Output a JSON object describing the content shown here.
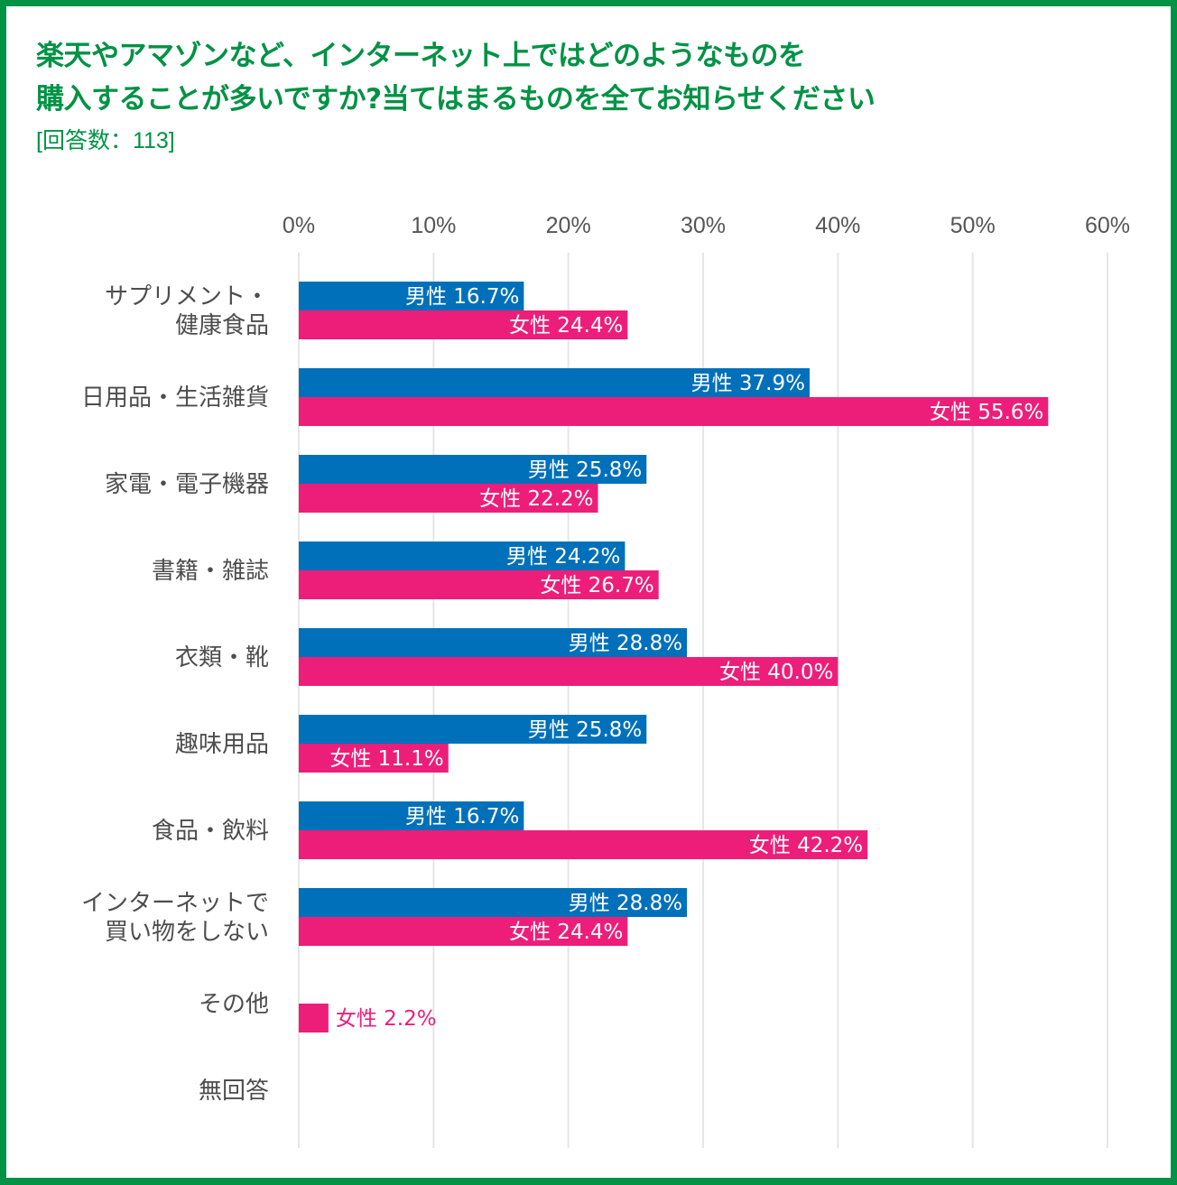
{
  "title_lines": [
    "楽天やアマゾンなど、インターネット上ではどのようなものを",
    "購入することが多いですか?当てはまるものを全てお知らせください"
  ],
  "subtitle": "[回答数：113]",
  "colors": {
    "frame": "#009245",
    "title": "#009245",
    "male": "#0070BA",
    "female": "#ED1E79",
    "grid": "#E6E6E6",
    "text": "#4D4D4D"
  },
  "chart_data": {
    "type": "bar",
    "orientation": "horizontal",
    "title": "楽天やアマゾンなど、インターネット上ではどのようなものを購入することが多いですか?当てはまるものを全てお知らせください",
    "subtitle": "[回答数：113]",
    "xlabel": "",
    "ylabel": "",
    "xlim": [
      0,
      60
    ],
    "x_ticks": [
      0,
      10,
      20,
      30,
      40,
      50,
      60
    ],
    "x_tick_labels": [
      "0%",
      "10%",
      "20%",
      "30%",
      "40%",
      "50%",
      "60%"
    ],
    "x_axis_position": "top",
    "grid": true,
    "legend": "none (series names shown inside data labels)",
    "categories": [
      [
        "サプリメント・",
        "健康食品"
      ],
      [
        "日用品・生活雑貨"
      ],
      [
        "家電・電子機器"
      ],
      [
        "書籍・雑誌"
      ],
      [
        "衣類・靴"
      ],
      [
        "趣味用品"
      ],
      [
        "食品・飲料"
      ],
      [
        "インターネットで",
        "買い物をしない"
      ],
      [
        "その他"
      ],
      [
        "無回答"
      ]
    ],
    "series": [
      {
        "name": "男性",
        "label_prefix": "男性",
        "values": [
          16.7,
          37.9,
          25.8,
          24.2,
          28.8,
          25.8,
          16.7,
          28.8,
          0,
          0
        ],
        "labels": [
          "男性 16.7%",
          "男性 37.9%",
          "男性 25.8%",
          "男性 24.2%",
          "男性 28.8%",
          "男性 25.8%",
          "男性 16.7%",
          "男性 28.8%",
          "",
          ""
        ]
      },
      {
        "name": "女性",
        "label_prefix": "女性",
        "values": [
          24.4,
          55.6,
          22.2,
          26.7,
          40.0,
          11.1,
          42.2,
          24.4,
          2.2,
          0
        ],
        "labels": [
          "女性 24.4%",
          "女性 55.6%",
          "女性 22.2%",
          "女性 26.7%",
          "女性 40.0%",
          "女性 11.1%",
          "女性 42.2%",
          "女性 24.4%",
          "女性 2.2%",
          ""
        ]
      }
    ]
  }
}
